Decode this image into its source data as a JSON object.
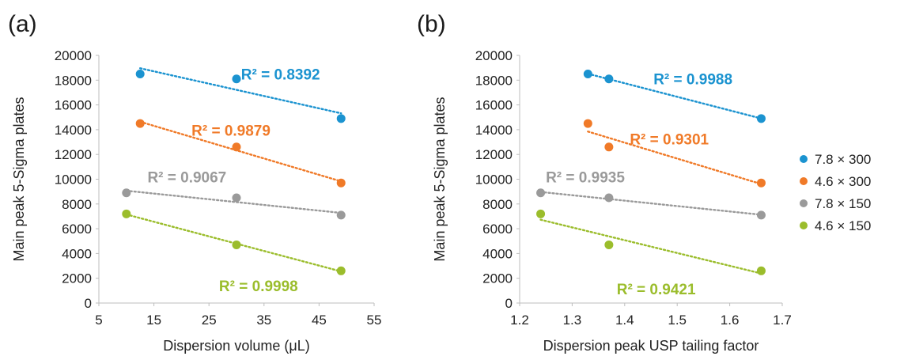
{
  "colors": {
    "7.8 × 300": "#1b93d0",
    "4.6 × 300": "#f07a28",
    "7.8 × 150": "#9a9a9a",
    "4.6 × 150": "#9bbd2c"
  },
  "legend": {
    "placement": "right",
    "entries": [
      "7.8 × 300",
      "4.6 × 300",
      "7.8 × 150",
      "4.6 × 150"
    ]
  },
  "chart_data": [
    {
      "panel": "(a)",
      "type": "scatter",
      "xlabel": "Dispersion volume (μL)",
      "ylabel": "Main peak 5-Sigma plates",
      "xlim": [
        5,
        55
      ],
      "ylim": [
        0,
        20000
      ],
      "xticks": [
        5,
        15,
        25,
        35,
        45,
        55
      ],
      "yticks": [
        0,
        2000,
        4000,
        6000,
        8000,
        10000,
        12000,
        14000,
        16000,
        18000,
        20000
      ],
      "grid": false,
      "series": [
        {
          "name": "7.8 × 300",
          "x": [
            12.5,
            30,
            49
          ],
          "y": [
            18500,
            18100,
            14900
          ],
          "r2": "R² = 0.8392",
          "r2_pos": [
            38,
            18500
          ]
        },
        {
          "name": "4.6 × 300",
          "x": [
            12.5,
            30,
            49
          ],
          "y": [
            14500,
            12600,
            9700
          ],
          "r2": "R² = 0.9879",
          "r2_pos": [
            29,
            13950
          ]
        },
        {
          "name": "7.8 × 150",
          "x": [
            10,
            30,
            49
          ],
          "y": [
            8900,
            8500,
            7100
          ],
          "r2": "R² = 0.9067",
          "r2_pos": [
            21,
            10200
          ]
        },
        {
          "name": "4.6 × 150",
          "x": [
            10,
            30,
            49
          ],
          "y": [
            7200,
            4700,
            2600
          ],
          "r2": "R² = 0.9998",
          "r2_pos": [
            34,
            1400
          ]
        }
      ]
    },
    {
      "panel": "(b)",
      "type": "scatter",
      "xlabel": "Dispersion peak USP tailing factor",
      "ylabel": "Main peak 5-Sigma plates",
      "xlim": [
        1.2,
        1.7
      ],
      "ylim": [
        0,
        20000
      ],
      "xticks": [
        "1.2",
        "1.3",
        "1.4",
        "1.5",
        "1.6",
        "1.7"
      ],
      "yticks": [
        0,
        2000,
        4000,
        6000,
        8000,
        10000,
        12000,
        14000,
        16000,
        18000,
        20000
      ],
      "grid": false,
      "series": [
        {
          "name": "7.8 × 300",
          "x": [
            1.33,
            1.37,
            1.66
          ],
          "y": [
            18500,
            18100,
            14900
          ],
          "r2": "R² = 0.9988",
          "r2_pos": [
            1.53,
            18100
          ]
        },
        {
          "name": "4.6 × 300",
          "x": [
            1.33,
            1.37,
            1.66
          ],
          "y": [
            14500,
            12600,
            9700
          ],
          "r2": "R² = 0.9301",
          "r2_pos": [
            1.485,
            13250
          ]
        },
        {
          "name": "7.8 × 150",
          "x": [
            1.24,
            1.37,
            1.66
          ],
          "y": [
            8900,
            8500,
            7100
          ],
          "r2": "R² = 0.9935",
          "r2_pos": [
            1.325,
            10200
          ]
        },
        {
          "name": "4.6 × 150",
          "x": [
            1.24,
            1.37,
            1.66
          ],
          "y": [
            7200,
            4700,
            2600
          ],
          "r2": "R² = 0.9421",
          "r2_pos": [
            1.46,
            1150
          ]
        }
      ]
    }
  ]
}
